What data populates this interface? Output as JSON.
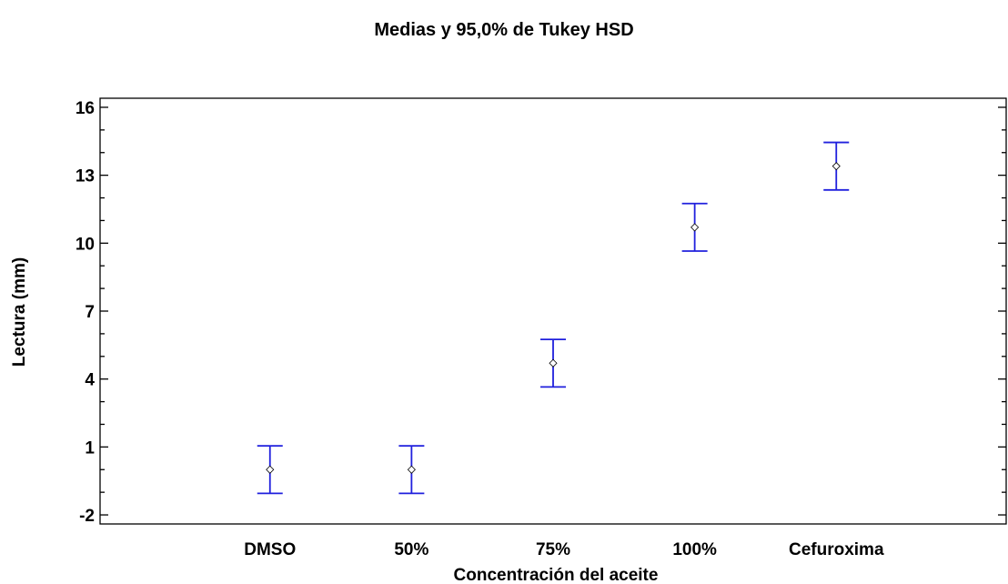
{
  "chart_data": {
    "type": "interval",
    "title": "Medias y 95,0% de Tukey HSD",
    "xlabel": "Concentración del aceite",
    "ylabel": "Lectura (mm)",
    "categories": [
      "DMSO",
      "50%",
      "75%",
      "100%",
      "Cefuroxima"
    ],
    "series": [
      {
        "means": [
          0.0,
          0.0,
          4.7,
          10.7,
          13.4
        ],
        "lower": [
          -1.05,
          -1.05,
          3.65,
          9.65,
          12.35
        ],
        "upper": [
          1.05,
          1.05,
          5.75,
          11.75,
          14.45
        ]
      }
    ],
    "ylim": [
      -2.4,
      16.4
    ],
    "yticks": [
      -2,
      1,
      4,
      7,
      10,
      13,
      16
    ],
    "ytick_labels": [
      "-2",
      "1",
      "4",
      "7",
      "10",
      "13",
      "16"
    ],
    "grid": false,
    "colors": {
      "interval": "#2020dd",
      "marker": "#000000"
    }
  }
}
